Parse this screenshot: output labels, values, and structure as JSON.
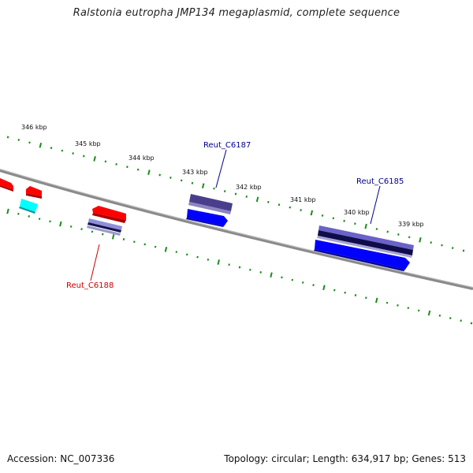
{
  "title": "Ralstonia eutropha JMP134 megaplasmid, complete sequence",
  "footer": {
    "accession": "Accession: NC_007336",
    "summary": "Topology: circular; Length: 634,917 bp; Genes: 513"
  },
  "colors": {
    "background": "#ffffff",
    "backbone": "#808080",
    "tick": "#1a8c1a",
    "forward_cds": "#ff0000",
    "reverse_cds": "#0000ff",
    "cyan_feature": "#00ffff",
    "dark_feature": "#3a2f7a",
    "label_forward": "#cc0000",
    "label_reverse": "#00008b"
  },
  "scale_labels": [
    "346 kbp",
    "345 kbp",
    "344 kbp",
    "343 kbp",
    "342 kbp",
    "341 kbp",
    "340 kbp",
    "339 kbp"
  ],
  "gene_labels": [
    {
      "id": "Reut_C6187",
      "color": "#00008b"
    },
    {
      "id": "Reut_C6185",
      "color": "#00008b"
    },
    {
      "id": "Reut_C6188",
      "color": "#cc0000"
    }
  ]
}
